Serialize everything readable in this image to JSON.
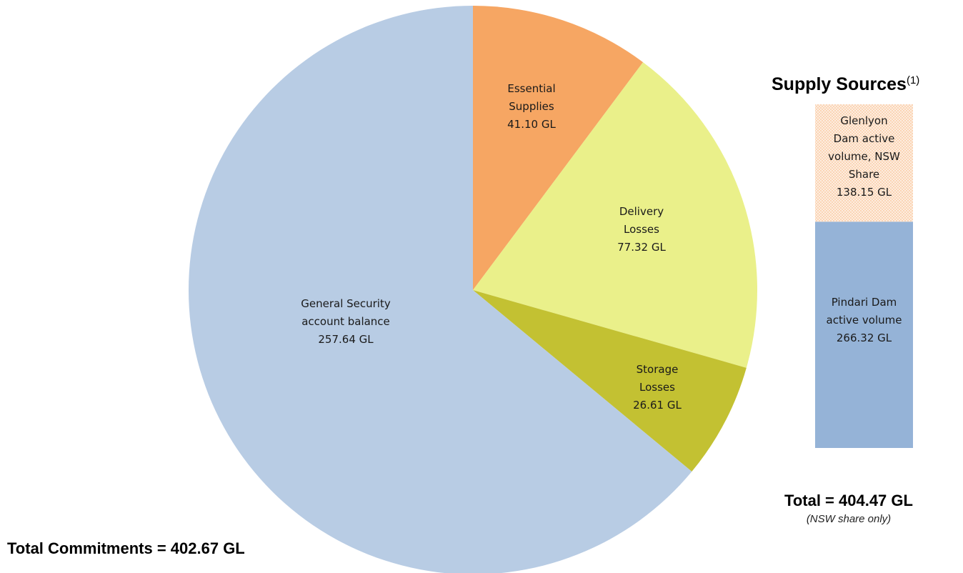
{
  "chart_data": [
    {
      "type": "pie",
      "slices": [
        {
          "label_lines": [
            "Essential",
            "Supplies"
          ],
          "value": 41.1,
          "value_label": "41.10 GL",
          "color": "#f6a663"
        },
        {
          "label_lines": [
            "Delivery",
            "Losses"
          ],
          "value": 77.32,
          "value_label": "77.32 GL",
          "color": "#eaf08a"
        },
        {
          "label_lines": [
            "Storage",
            "Losses"
          ],
          "value": 26.61,
          "value_label": "26.61 GL",
          "color": "#c3c132"
        },
        {
          "label_lines": [
            "General Security",
            "account balance"
          ],
          "value": 257.64,
          "value_label": "257.64 GL",
          "color": "#b8cce4"
        }
      ],
      "total_label": "Total Commitments = 402.67 GL"
    },
    {
      "type": "bar",
      "stacked": true,
      "title": "Supply Sources",
      "title_superscript": "(1)",
      "segments": [
        {
          "label_lines": [
            "Pindari Dam",
            "active volume"
          ],
          "value": 266.32,
          "value_label": "266.32 GL",
          "color": "#95b3d7",
          "pattern": "solid"
        },
        {
          "label_lines": [
            "Glenlyon",
            "Dam active",
            "volume, NSW",
            "Share"
          ],
          "value": 138.15,
          "value_label": "138.15 GL",
          "color": "#fbd5b5",
          "pattern": "dotted"
        }
      ],
      "total_label": "Total = 404.47 GL",
      "total_note": "(NSW share only)"
    }
  ]
}
